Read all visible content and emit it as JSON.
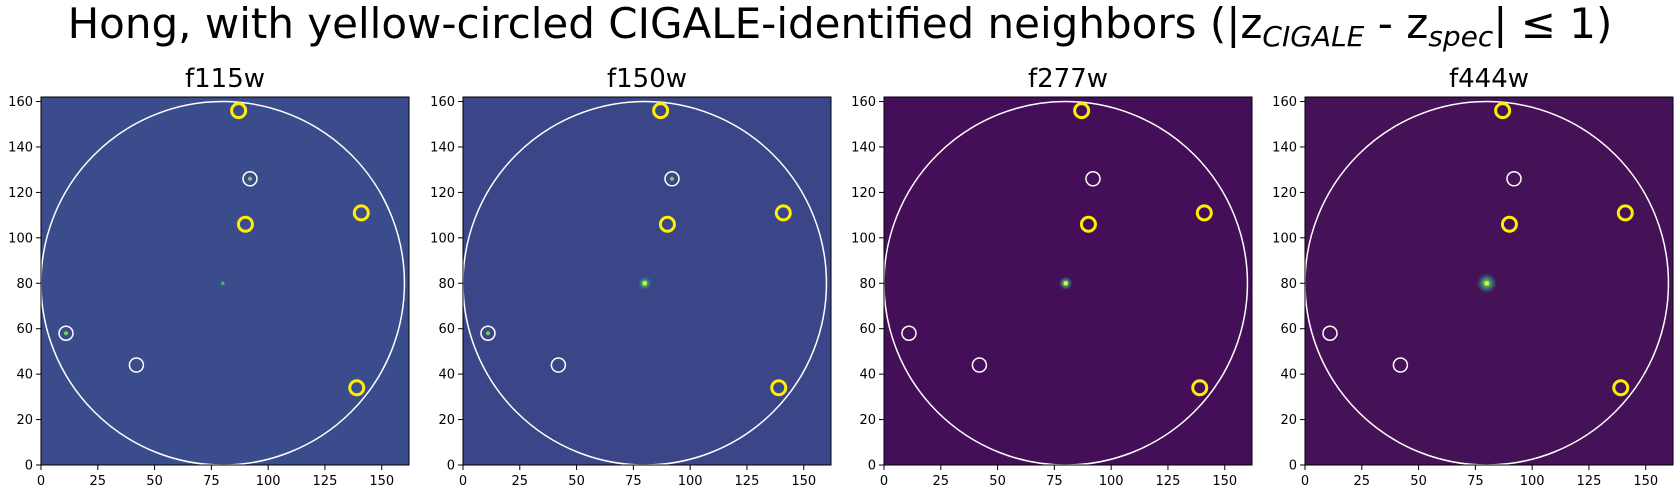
{
  "title": {
    "prefix": "Hong, with yellow-circled CIGALE-identified neighbors (|z",
    "sub1": "CIGALE",
    "middle": " - z",
    "sub2": "spec",
    "suffix": "| ≤ 1)"
  },
  "chart_data": {
    "type": "image-panels",
    "xlim": [
      0,
      162
    ],
    "ylim": [
      0,
      162
    ],
    "xticks": [
      0,
      25,
      50,
      75,
      100,
      125,
      150
    ],
    "yticks": [
      0,
      20,
      40,
      60,
      80,
      100,
      120,
      140,
      160
    ],
    "grid": false,
    "panels": [
      {
        "title": "f115w",
        "background": "#3b4c8c",
        "center_source": "faint"
      },
      {
        "title": "f150w",
        "background": "#3a4687",
        "center_source": "bright"
      },
      {
        "title": "f277w",
        "background": "#440f58",
        "center_source": "bright"
      },
      {
        "title": "f444w",
        "background": "#451258",
        "center_source": "bright-extended"
      }
    ],
    "search_radius_circle": {
      "center": [
        80,
        80
      ],
      "radius": 80,
      "color": "#ffffff"
    },
    "neighbors_white": [
      [
        92,
        126
      ],
      [
        11,
        58
      ],
      [
        42,
        44
      ]
    ],
    "neighbors_yellow": [
      [
        87,
        156
      ],
      [
        90,
        106
      ],
      [
        141,
        111
      ],
      [
        139,
        34
      ]
    ],
    "colors": {
      "white_circle": "#ffffff",
      "yellow_circle": "#ffee00"
    }
  }
}
